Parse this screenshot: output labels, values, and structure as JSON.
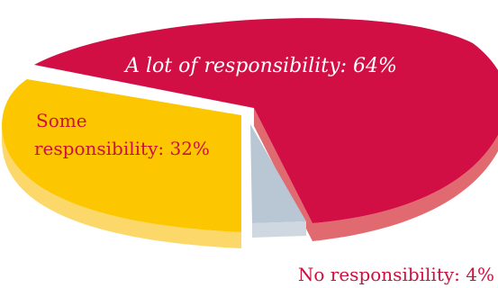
{
  "chart_data": {
    "type": "pie",
    "style": "3d-exploded",
    "slices": [
      {
        "label": "A lot of responsibility",
        "value": 64,
        "display": "A lot of responsibility: 64%",
        "color": "#d20f45",
        "side": "#e06a70",
        "text_color": "#ffffff"
      },
      {
        "label": "Some responsibility",
        "value": 32,
        "display_line1": "Some",
        "display_line2": "responsibility: 32%",
        "color": "#fcc700",
        "side": "#fcd76a",
        "text_color": "#cc1040"
      },
      {
        "label": "No responsibility",
        "value": 4,
        "display": "No responsibility:  4%",
        "color": "#b8c7d3",
        "side": "#cfd8e0",
        "text_color": "#cc1040"
      }
    ]
  }
}
